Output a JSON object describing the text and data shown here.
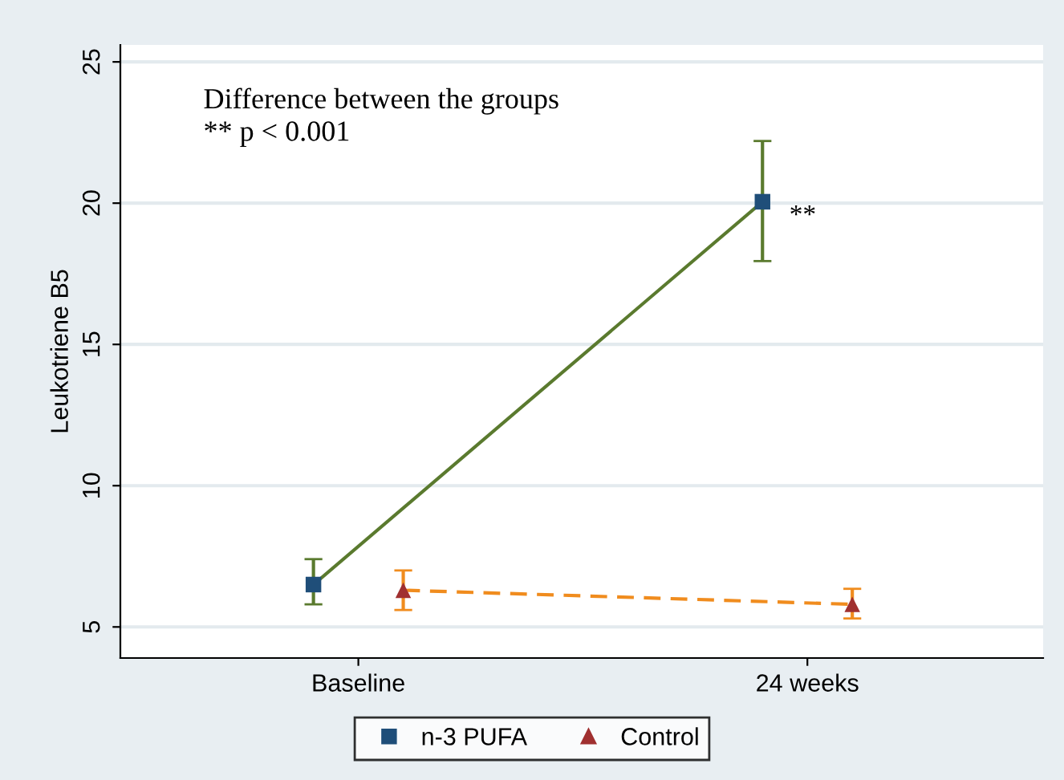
{
  "chart_data": {
    "type": "line",
    "ylabel": "Leukotriene B5",
    "categories": [
      "Baseline",
      "24 weeks"
    ],
    "series": [
      {
        "name": "n-3 PUFA",
        "color": "#5a7a2e",
        "colors": [
          "#1f4e79",
          "#1f4e79"
        ],
        "marker": "square",
        "line_style": "solid",
        "values": [
          6.5,
          20.05
        ],
        "errors": [
          [
            5.8,
            7.4
          ],
          [
            17.95,
            22.2
          ]
        ]
      },
      {
        "name": "Control",
        "color": "#f08c1e",
        "colors": [
          "#a03030",
          "#a03030"
        ],
        "marker": "triangle",
        "line_style": "dashed",
        "values": [
          6.3,
          5.8
        ],
        "errors": [
          [
            5.6,
            7.0
          ],
          [
            5.3,
            6.35
          ]
        ]
      }
    ],
    "ylim": [
      3.9,
      25.6
    ],
    "yticks": [
      5,
      10,
      15,
      20,
      25
    ],
    "grid": "y",
    "legend": "bottom",
    "annotations": [
      "Difference between the groups\n** p < 0.001",
      "**"
    ]
  }
}
